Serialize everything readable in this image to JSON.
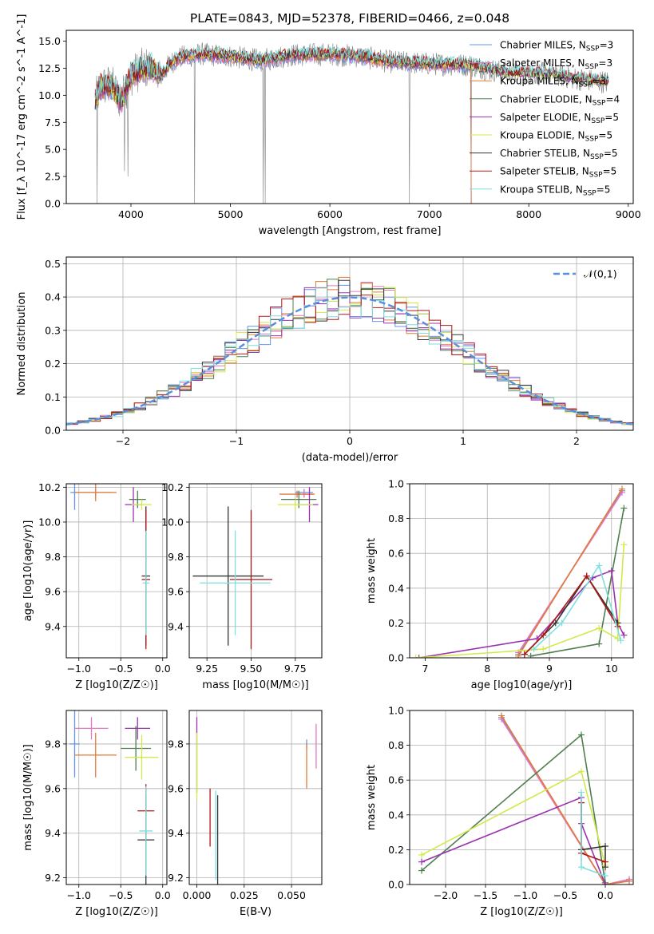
{
  "figure": {
    "title": "PLATE=0843, MJD=52378, FIBERID=0466, z=0.048"
  },
  "colors": {
    "Chabrier MILES": "#6495ed",
    "Salpeter MILES": "#e377c2",
    "Kroupa MILES": "#e07b39",
    "Chabrier ELODIE": "#4f7f4f",
    "Salpeter ELODIE": "#9a32b0",
    "Kroupa ELODIE": "#d4e84a",
    "Chabrier STELIB": "#333333",
    "Salpeter STELIB": "#b01818",
    "Kroupa STELIB": "#7fdede",
    "gaussian": "#5a8fdd",
    "data_spectrum": "#808080"
  },
  "chart_data": [
    {
      "id": "spectrum",
      "type": "line",
      "title": "PLATE=0843, MJD=52378, FIBERID=0466, z=0.048",
      "xlabel": "wavelength [Angstrom, rest frame]",
      "ylabel": "Flux [f_λ 10^-17 erg cm^-2 s^-1 A^-1]",
      "xlim": [
        3350,
        9050
      ],
      "ylim": [
        0,
        16
      ],
      "xticks": [
        4000,
        5000,
        6000,
        7000,
        8000,
        9000
      ],
      "yticks": [
        "0.0",
        "2.5",
        "5.0",
        "7.5",
        "10.0",
        "12.5",
        "15.0"
      ],
      "grid": false,
      "legend_placement": "right",
      "legend": [
        {
          "name": "Chabrier MILES",
          "nssp": "3"
        },
        {
          "name": "Salpeter MILES",
          "nssp": "3"
        },
        {
          "name": "Kroupa MILES",
          "nssp": "3"
        },
        {
          "name": "Chabrier ELODIE",
          "nssp": "4"
        },
        {
          "name": "Salpeter ELODIE",
          "nssp": "5"
        },
        {
          "name": "Kroupa ELODIE",
          "nssp": "5"
        },
        {
          "name": "Chabrier STELIB",
          "nssp": "5"
        },
        {
          "name": "Salpeter STELIB",
          "nssp": "5"
        },
        {
          "name": "Kroupa STELIB",
          "nssp": "5"
        }
      ],
      "continuum": {
        "x": [
          3640,
          3700,
          3800,
          3900,
          4000,
          4100,
          4200,
          4300,
          4400,
          4500,
          4700,
          5000,
          5300,
          5600,
          6000,
          6300,
          6600,
          7000,
          7400,
          7800,
          8200,
          8500,
          8800
        ],
        "y": [
          9.5,
          10.8,
          11.0,
          9.5,
          11.8,
          12.4,
          12.6,
          11.8,
          13.0,
          13.5,
          13.8,
          13.6,
          13.2,
          13.7,
          13.8,
          13.6,
          13.1,
          12.9,
          12.8,
          12.0,
          12.0,
          11.5,
          11.2
        ]
      },
      "features": [
        {
          "x": 3660,
          "y": 0
        },
        {
          "x": 3935,
          "y": 3.0
        },
        {
          "x": 3970,
          "y": 2.5
        },
        {
          "x": 4640,
          "y": 0
        },
        {
          "x": 5330,
          "y": 0
        },
        {
          "x": 5350,
          "y": 0
        },
        {
          "x": 6800,
          "y": 0
        },
        {
          "x": 7420,
          "y": 0
        }
      ]
    },
    {
      "id": "residuals",
      "type": "histogram",
      "xlabel": "(data-model)/error",
      "ylabel": "Normed distribution",
      "xlim": [
        -2.5,
        2.5
      ],
      "ylim": [
        0,
        0.52
      ],
      "xticks": [
        "−2",
        "−1",
        "0",
        "1",
        "2"
      ],
      "yticks": [
        "0.0",
        "0.1",
        "0.2",
        "0.3",
        "0.4",
        "0.5"
      ],
      "grid": true,
      "legend_placement": "top-right",
      "gaussian_label": "𝒩(0,1)",
      "bin_width": 0.1
    },
    {
      "id": "age_vs_Z",
      "type": "errorbar",
      "xlabel": "Z [log10(Z/Z☉)]",
      "ylabel": "age [log10(age/yr)]",
      "xlim": [
        -1.15,
        0.05
      ],
      "ylim": [
        9.22,
        10.22
      ],
      "xticks": [
        "−1.0",
        "−0.5",
        "0.0"
      ],
      "yticks": [
        "9.4",
        "9.6",
        "9.8",
        "10.0",
        "10.2"
      ],
      "grid": true,
      "points": [
        {
          "model": "Chabrier MILES",
          "x": -1.05,
          "xerr": 0.05,
          "y": 10.17,
          "yerr": 0.1
        },
        {
          "model": "Salpeter MILES",
          "x": -0.8,
          "xerr": 0.2,
          "y": 10.17,
          "yerr": 0.02
        },
        {
          "model": "Kroupa MILES",
          "x": -0.8,
          "xerr": 0.25,
          "y": 10.17,
          "yerr": 0.05
        },
        {
          "model": "Chabrier ELODIE",
          "x": -0.3,
          "xerr": 0.1,
          "y": 10.13,
          "yerr": 0.05
        },
        {
          "model": "Salpeter ELODIE",
          "x": -0.35,
          "xerr": 0.1,
          "y": 10.1,
          "yerr": 0.1
        },
        {
          "model": "Kroupa ELODIE",
          "x": -0.25,
          "xerr": 0.12,
          "y": 10.1,
          "yerr": 0.03
        },
        {
          "model": "Chabrier STELIB",
          "x": -0.2,
          "xerr": 0.05,
          "y": 9.69,
          "yerr": 0.4
        },
        {
          "model": "Salpeter STELIB",
          "x": -0.2,
          "xerr": 0.05,
          "y": 9.67,
          "yerr": 0.4
        },
        {
          "model": "Kroupa STELIB",
          "x": -0.2,
          "xerr": 0.04,
          "y": 9.65,
          "yerr": 0.3
        }
      ]
    },
    {
      "id": "age_vs_mass",
      "type": "errorbar",
      "xlabel": "mass [log10(M/M☉)]",
      "ylabel": "",
      "xlim": [
        9.15,
        9.9
      ],
      "ylim": [
        9.22,
        10.22
      ],
      "xticks": [
        "9.25",
        "9.50",
        "9.75"
      ],
      "yticks": [
        "9.4",
        "9.6",
        "9.8",
        "10.0",
        "10.2"
      ],
      "grid": true,
      "points": [
        {
          "model": "Chabrier MILES",
          "x": 9.8,
          "xerr": 0.05,
          "y": 10.17,
          "yerr": 0.02
        },
        {
          "model": "Salpeter MILES",
          "x": 9.8,
          "xerr": 0.05,
          "y": 10.16,
          "yerr": 0.02
        },
        {
          "model": "Kroupa MILES",
          "x": 9.76,
          "xerr": 0.1,
          "y": 10.16,
          "yerr": 0.02
        },
        {
          "model": "Chabrier ELODIE",
          "x": 9.77,
          "xerr": 0.1,
          "y": 10.13,
          "yerr": 0.05
        },
        {
          "model": "Salpeter ELODIE",
          "x": 9.83,
          "xerr": 0.05,
          "y": 10.1,
          "yerr": 0.1
        },
        {
          "model": "Kroupa ELODIE",
          "x": 9.75,
          "xerr": 0.1,
          "y": 10.1,
          "yerr": 0.03
        },
        {
          "model": "Chabrier STELIB",
          "x": 9.37,
          "xerr": 0.2,
          "y": 9.69,
          "yerr": 0.4
        },
        {
          "model": "Salpeter STELIB",
          "x": 9.5,
          "xerr": 0.12,
          "y": 9.67,
          "yerr": 0.4
        },
        {
          "model": "Kroupa STELIB",
          "x": 9.41,
          "xerr": 0.2,
          "y": 9.65,
          "yerr": 0.3
        }
      ]
    },
    {
      "id": "weight_vs_age",
      "type": "line",
      "xlabel": "age [log10(age/yr)]",
      "ylabel": "mass weight",
      "xlim": [
        6.75,
        10.35
      ],
      "ylim": [
        0,
        1
      ],
      "xticks": [
        "7",
        "8",
        "9",
        "10"
      ],
      "yticks": [
        "0.0",
        "0.2",
        "0.4",
        "0.6",
        "0.8",
        "1.0"
      ],
      "grid": true,
      "series": [
        {
          "model": "Chabrier MILES",
          "x": [
            8.5,
            10.17
          ],
          "y": [
            0.02,
            0.96
          ]
        },
        {
          "model": "Salpeter MILES",
          "x": [
            8.5,
            10.17
          ],
          "y": [
            0.03,
            0.95
          ]
        },
        {
          "model": "Kroupa MILES",
          "x": [
            8.5,
            10.17
          ],
          "y": [
            0.01,
            0.97
          ]
        },
        {
          "model": "Chabrier ELODIE",
          "x": [
            8.7,
            9.8,
            10.2
          ],
          "y": [
            0.01,
            0.08,
            0.86
          ]
        },
        {
          "model": "Salpeter ELODIE",
          "x": [
            6.9,
            8.8,
            9.7,
            10.0,
            10.1,
            10.2
          ],
          "y": [
            0.0,
            0.11,
            0.46,
            0.5,
            0.2,
            0.13
          ]
        },
        {
          "model": "Kroupa ELODIE",
          "x": [
            6.85,
            8.9,
            9.8,
            10.1,
            10.2
          ],
          "y": [
            0.0,
            0.05,
            0.17,
            0.11,
            0.65
          ]
        },
        {
          "model": "Chabrier STELIB",
          "x": [
            8.6,
            9.1,
            9.6,
            10.1
          ],
          "y": [
            0.02,
            0.2,
            0.47,
            0.2
          ]
        },
        {
          "model": "Salpeter STELIB",
          "x": [
            8.6,
            8.9,
            9.6,
            10.1
          ],
          "y": [
            0.02,
            0.13,
            0.47,
            0.18
          ]
        },
        {
          "model": "Kroupa STELIB",
          "x": [
            8.75,
            9.2,
            9.8,
            10.15
          ],
          "y": [
            0.05,
            0.2,
            0.53,
            0.1
          ]
        }
      ]
    },
    {
      "id": "mass_vs_Z",
      "type": "errorbar",
      "xlabel": "Z [log10(Z/Z☉)]",
      "ylabel": "mass [log10(M/M☉)]",
      "xlim": [
        -1.15,
        0.05
      ],
      "ylim": [
        9.17,
        9.95
      ],
      "xticks": [
        "−1.0",
        "−0.5",
        "0.0"
      ],
      "yticks": [
        "9.2",
        "9.4",
        "9.6",
        "9.8"
      ],
      "grid": true,
      "points": [
        {
          "model": "Chabrier MILES",
          "x": -1.05,
          "xerr": 0.06,
          "y": 9.8,
          "yerr": 0.15
        },
        {
          "model": "Salpeter MILES",
          "x": -0.85,
          "xerr": 0.2,
          "y": 9.87,
          "yerr": 0.05
        },
        {
          "model": "Kroupa MILES",
          "x": -0.8,
          "xerr": 0.25,
          "y": 9.75,
          "yerr": 0.1
        },
        {
          "model": "Chabrier ELODIE",
          "x": -0.32,
          "xerr": 0.18,
          "y": 9.78,
          "yerr": 0.1
        },
        {
          "model": "Salpeter ELODIE",
          "x": -0.3,
          "xerr": 0.15,
          "y": 9.87,
          "yerr": 0.05
        },
        {
          "model": "Kroupa ELODIE",
          "x": -0.25,
          "xerr": 0.2,
          "y": 9.74,
          "yerr": 0.1
        },
        {
          "model": "Chabrier STELIB",
          "x": -0.2,
          "xerr": 0.1,
          "y": 9.37,
          "yerr": 0.2
        },
        {
          "model": "Salpeter STELIB",
          "x": -0.2,
          "xerr": 0.1,
          "y": 9.5,
          "yerr": 0.12
        },
        {
          "model": "Kroupa STELIB",
          "x": -0.2,
          "xerr": 0.08,
          "y": 9.41,
          "yerr": 0.2
        }
      ]
    },
    {
      "id": "mass_vs_EBV",
      "type": "errorbar",
      "xlabel": "E(B-V)",
      "ylabel": "",
      "xlim": [
        -0.004,
        0.066
      ],
      "ylim": [
        9.17,
        9.95
      ],
      "xticks": [
        "0.000",
        "0.025",
        "0.050"
      ],
      "yticks": [
        "9.2",
        "9.4",
        "9.6",
        "9.8"
      ],
      "grid": true,
      "points": [
        {
          "model": "Chabrier MILES",
          "x": 0.058,
          "xerr": 0,
          "y": 9.8,
          "yerr": 0.02
        },
        {
          "model": "Salpeter MILES",
          "x": 0.063,
          "xerr": 0,
          "y": 9.79,
          "yerr": 0.1
        },
        {
          "model": "Kroupa MILES",
          "x": 0.058,
          "xerr": 0,
          "y": 9.7,
          "yerr": 0.1
        },
        {
          "model": "Chabrier ELODIE",
          "x": 0.0,
          "xerr": 0,
          "y": 9.7,
          "yerr": 0.12
        },
        {
          "model": "Salpeter ELODIE",
          "x": 0.0,
          "xerr": 0,
          "y": 9.87,
          "yerr": 0.05
        },
        {
          "model": "Kroupa ELODIE",
          "x": 0.0,
          "xerr": 0,
          "y": 9.7,
          "yerr": 0.15
        },
        {
          "model": "Chabrier STELIB",
          "x": 0.011,
          "xerr": 0,
          "y": 9.37,
          "yerr": 0.2
        },
        {
          "model": "Salpeter STELIB",
          "x": 0.007,
          "xerr": 0,
          "y": 9.47,
          "yerr": 0.13
        },
        {
          "model": "Kroupa STELIB",
          "x": 0.01,
          "xerr": 0,
          "y": 9.39,
          "yerr": 0.2
        }
      ]
    },
    {
      "id": "weight_vs_Z",
      "type": "line",
      "xlabel": "Z [log10(Z/Z☉)]",
      "ylabel": "mass weight",
      "xlim": [
        -2.45,
        0.35
      ],
      "ylim": [
        0,
        1
      ],
      "xticks": [
        "−2.0",
        "−1.5",
        "−1.0",
        "−0.5",
        "0.0"
      ],
      "yticks": [
        "0.0",
        "0.2",
        "0.4",
        "0.6",
        "0.8",
        "1.0"
      ],
      "grid": true,
      "series": [
        {
          "model": "Chabrier MILES",
          "x": [
            -1.3,
            0.0,
            0.3
          ],
          "y": [
            0.96,
            0.0,
            0.02
          ]
        },
        {
          "model": "Salpeter MILES",
          "x": [
            -1.3,
            0.0,
            0.3
          ],
          "y": [
            0.95,
            0.0,
            0.03
          ]
        },
        {
          "model": "Kroupa MILES",
          "x": [
            -1.3,
            0.0,
            0.3
          ],
          "y": [
            0.97,
            0.0,
            0.02
          ]
        },
        {
          "model": "Chabrier ELODIE",
          "x": [
            -2.3,
            -0.3,
            0.0
          ],
          "y": [
            0.08,
            0.86,
            0.01
          ]
        },
        {
          "model": "Salpeter ELODIE",
          "x": [
            -2.3,
            -0.3,
            -0.3,
            0.0
          ],
          "y": [
            0.13,
            0.5,
            0.35,
            0.0
          ]
        },
        {
          "model": "Kroupa ELODIE",
          "x": [
            -2.3,
            -0.3,
            0.0
          ],
          "y": [
            0.17,
            0.65,
            0.11
          ]
        },
        {
          "model": "Chabrier STELIB",
          "x": [
            -0.3,
            -0.3,
            0.0,
            0.0
          ],
          "y": [
            0.47,
            0.2,
            0.22,
            0.1
          ]
        },
        {
          "model": "Salpeter STELIB",
          "x": [
            -0.3,
            -0.3,
            0.0
          ],
          "y": [
            0.47,
            0.18,
            0.13
          ]
        },
        {
          "model": "Kroupa STELIB",
          "x": [
            -0.3,
            -0.3,
            0.0
          ],
          "y": [
            0.53,
            0.1,
            0.05
          ]
        }
      ]
    }
  ]
}
